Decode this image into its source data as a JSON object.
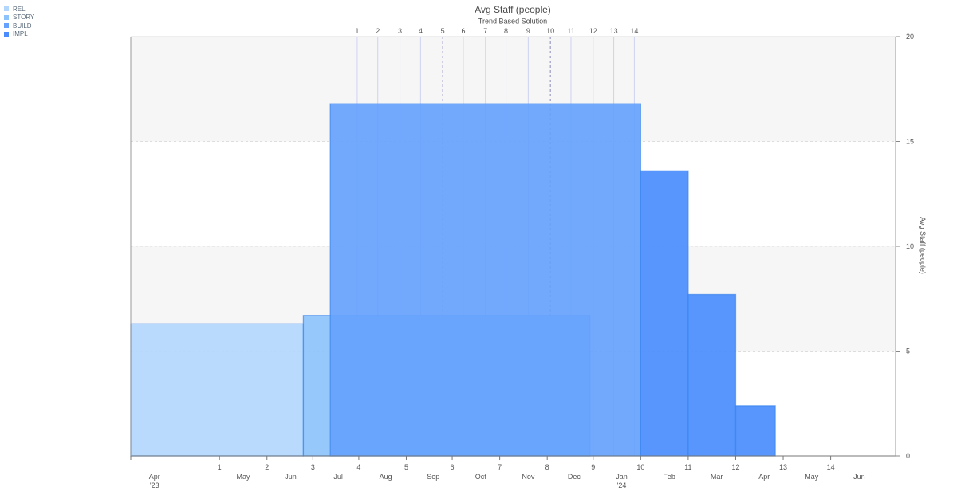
{
  "chart_data": {
    "type": "bar",
    "title": "Avg Staff (people)",
    "subtitle": "Trend Based Solution",
    "ylabel": "Avg Staff (people)",
    "ylim": [
      0,
      20
    ],
    "y_ticks": [
      "0",
      "5",
      "10",
      "15",
      "20"
    ],
    "grid": true,
    "legend_position": "top-left",
    "x_range": [
      "2023-03-05",
      "2024-06-30"
    ],
    "bottom_number_ticks": [
      {
        "label": "1",
        "date": "2023-04-30"
      },
      {
        "label": "2",
        "date": "2023-05-30"
      },
      {
        "label": "3",
        "date": "2023-06-28"
      },
      {
        "label": "4",
        "date": "2023-07-27"
      },
      {
        "label": "5",
        "date": "2023-08-26"
      },
      {
        "label": "6",
        "date": "2023-09-24"
      },
      {
        "label": "7",
        "date": "2023-10-24"
      },
      {
        "label": "8",
        "date": "2023-11-23"
      },
      {
        "label": "9",
        "date": "2023-12-22"
      },
      {
        "label": "10",
        "date": "2024-01-21"
      },
      {
        "label": "11",
        "date": "2024-02-20"
      },
      {
        "label": "12",
        "date": "2024-03-21"
      },
      {
        "label": "13",
        "date": "2024-04-20"
      },
      {
        "label": "14",
        "date": "2024-05-20"
      }
    ],
    "month_labels": [
      {
        "label": "Apr",
        "sub": "'23",
        "date": "2023-03-20"
      },
      {
        "label": "May",
        "sub": "",
        "date": "2023-05-15"
      },
      {
        "label": "Jun",
        "sub": "",
        "date": "2023-06-14"
      },
      {
        "label": "Jul",
        "sub": "",
        "date": "2023-07-14"
      },
      {
        "label": "Aug",
        "sub": "",
        "date": "2023-08-13"
      },
      {
        "label": "Sep",
        "sub": "",
        "date": "2023-09-12"
      },
      {
        "label": "Oct",
        "sub": "",
        "date": "2023-10-12"
      },
      {
        "label": "Nov",
        "sub": "",
        "date": "2023-11-11"
      },
      {
        "label": "Dec",
        "sub": "",
        "date": "2023-12-10"
      },
      {
        "label": "Jan",
        "sub": "'24",
        "date": "2024-01-09"
      },
      {
        "label": "Feb",
        "sub": "",
        "date": "2024-02-08"
      },
      {
        "label": "Mar",
        "sub": "",
        "date": "2024-03-09"
      },
      {
        "label": "Apr",
        "sub": "",
        "date": "2024-04-08"
      },
      {
        "label": "May",
        "sub": "",
        "date": "2024-05-08"
      },
      {
        "label": "Jun",
        "sub": "",
        "date": "2024-06-07"
      }
    ],
    "top_number_ticks": [
      {
        "label": "1",
        "date": "2023-07-26",
        "dashed": false
      },
      {
        "label": "2",
        "date": "2023-08-08",
        "dashed": false
      },
      {
        "label": "3",
        "date": "2023-08-22",
        "dashed": false
      },
      {
        "label": "4",
        "date": "2023-09-04",
        "dashed": false
      },
      {
        "label": "5",
        "date": "2023-09-18",
        "dashed": true
      },
      {
        "label": "6",
        "date": "2023-10-01",
        "dashed": false
      },
      {
        "label": "7",
        "date": "2023-10-15",
        "dashed": false
      },
      {
        "label": "8",
        "date": "2023-10-28",
        "dashed": false
      },
      {
        "label": "9",
        "date": "2023-11-11",
        "dashed": false
      },
      {
        "label": "10",
        "date": "2023-11-25",
        "dashed": true
      },
      {
        "label": "11",
        "date": "2023-12-08",
        "dashed": false
      },
      {
        "label": "12",
        "date": "2023-12-22",
        "dashed": false
      },
      {
        "label": "13",
        "date": "2024-01-04",
        "dashed": false
      },
      {
        "label": "14",
        "date": "2024-01-17",
        "dashed": false
      }
    ],
    "series": [
      {
        "name": "REL",
        "color": "#b3d7fc",
        "bars": [
          {
            "start": "2023-03-05",
            "end": "2023-06-22",
            "value": 6.3
          }
        ]
      },
      {
        "name": "STORY",
        "color": "#8dc3fb",
        "bars": [
          {
            "start": "2023-06-22",
            "end": "2023-12-20",
            "value": 6.7
          }
        ]
      },
      {
        "name": "BUILD",
        "color": "#66a2fd",
        "bars": [
          {
            "start": "2023-07-09",
            "end": "2024-01-21",
            "value": 16.8
          }
        ]
      },
      {
        "name": "IMPL",
        "color": "#4a8cfc",
        "bars": [
          {
            "start": "2024-01-21",
            "end": "2024-02-20",
            "value": 13.6
          },
          {
            "start": "2024-02-20",
            "end": "2024-03-21",
            "value": 7.7
          },
          {
            "start": "2024-03-21",
            "end": "2024-04-15",
            "value": 2.4
          }
        ]
      }
    ]
  }
}
